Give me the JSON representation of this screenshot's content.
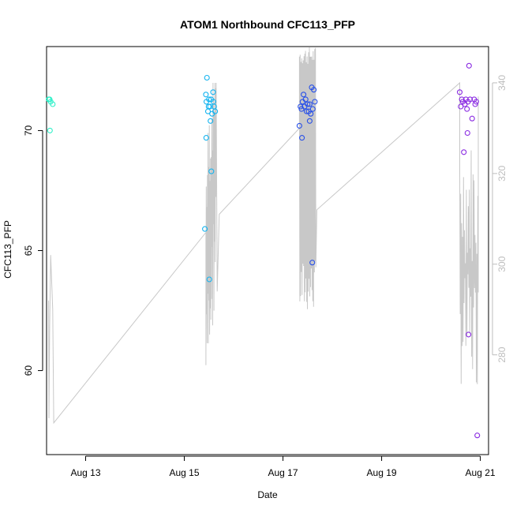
{
  "chart_data": {
    "type": "scatter",
    "title": "ATOM1 Northbound CFC113_PFP",
    "xlabel": "Date",
    "ylabel": "CFC113_PFP",
    "x_axis": {
      "type": "date",
      "ticks": [
        "Aug 13",
        "Aug 15",
        "Aug 17",
        "Aug 19",
        "Aug 21"
      ],
      "range": [
        "2016-08-12 05:00",
        "2016-08-21 04:00"
      ]
    },
    "y_axis_left": {
      "ticks": [
        60,
        65,
        70
      ],
      "range": [
        56.5,
        73.5
      ]
    },
    "y_axis_right": {
      "ticks": [
        280,
        300,
        320,
        340
      ],
      "range": [
        258,
        348
      ],
      "color": "#bdbdbd",
      "series": "altitude trace (gray line)"
    },
    "colors": {
      "group1": "#2ef0c8",
      "group2": "#14b4f0",
      "group3": "#2850e8",
      "group4": "#8a2be2",
      "line": "#c8c8c8"
    },
    "series": [
      {
        "color_key": "group1",
        "points": [
          [
            "2016-08-12 06:00",
            71.3
          ],
          [
            "2016-08-12 06:30",
            71.3
          ],
          [
            "2016-08-12 07:00",
            71.2
          ],
          [
            "2016-08-12 08:00",
            71.1
          ],
          [
            "2016-08-12 06:40",
            70.0
          ]
        ]
      },
      {
        "color_key": "group2",
        "points": [
          [
            "2016-08-15 11:00",
            72.2
          ],
          [
            "2016-08-15 10:30",
            71.5
          ],
          [
            "2016-08-15 14:00",
            71.6
          ],
          [
            "2016-08-15 10:45",
            71.2
          ],
          [
            "2016-08-15 12:00",
            71.3
          ],
          [
            "2016-08-15 13:00",
            71.3
          ],
          [
            "2016-08-15 12:30",
            71.0
          ],
          [
            "2016-08-15 14:30",
            71.0
          ],
          [
            "2016-08-15 11:30",
            70.8
          ],
          [
            "2016-08-15 15:00",
            70.8
          ],
          [
            "2016-08-15 13:30",
            70.7
          ],
          [
            "2016-08-15 12:45",
            70.4
          ],
          [
            "2016-08-15 10:40",
            69.7
          ],
          [
            "2016-08-15 13:10",
            68.3
          ],
          [
            "2016-08-15 10:00",
            65.9
          ],
          [
            "2016-08-15 12:10",
            63.8
          ],
          [
            "2016-08-15 14:10",
            71.2
          ],
          [
            "2016-08-15 11:50",
            71.0
          ]
        ]
      },
      {
        "color_key": "group3",
        "points": [
          [
            "2016-08-17 10:00",
            71.5
          ],
          [
            "2016-08-17 14:00",
            71.8
          ],
          [
            "2016-08-17 15:00",
            71.7
          ],
          [
            "2016-08-17 09:30",
            71.2
          ],
          [
            "2016-08-17 11:00",
            71.3
          ],
          [
            "2016-08-17 12:00",
            71.1
          ],
          [
            "2016-08-17 13:00",
            71.1
          ],
          [
            "2016-08-17 08:30",
            71.0
          ],
          [
            "2016-08-17 09:00",
            70.9
          ],
          [
            "2016-08-17 10:30",
            71.0
          ],
          [
            "2016-08-17 11:30",
            70.8
          ],
          [
            "2016-08-17 12:30",
            70.8
          ],
          [
            "2016-08-17 14:30",
            70.9
          ],
          [
            "2016-08-17 13:30",
            70.7
          ],
          [
            "2016-08-17 13:00",
            70.4
          ],
          [
            "2016-08-17 08:00",
            70.2
          ],
          [
            "2016-08-17 09:15",
            69.7
          ],
          [
            "2016-08-17 14:15",
            64.5
          ],
          [
            "2016-08-17 15:30",
            71.2
          ]
        ]
      },
      {
        "color_key": "group4",
        "points": [
          [
            "2016-08-20 14:00",
            71.6
          ],
          [
            "2016-08-20 15:00",
            71.3
          ],
          [
            "2016-08-20 15:30",
            71.2
          ],
          [
            "2016-08-20 17:00",
            71.3
          ],
          [
            "2016-08-20 18:00",
            71.2
          ],
          [
            "2016-08-20 19:00",
            71.3
          ],
          [
            "2016-08-20 21:00",
            71.3
          ],
          [
            "2016-08-20 22:00",
            71.2
          ],
          [
            "2016-08-20 16:30",
            71.1
          ],
          [
            "2016-08-20 14:30",
            71.0
          ],
          [
            "2016-08-20 17:30",
            70.9
          ],
          [
            "2016-08-20 20:00",
            70.5
          ],
          [
            "2016-08-20 18:30",
            72.7
          ],
          [
            "2016-08-20 17:45",
            69.9
          ],
          [
            "2016-08-20 16:00",
            69.1
          ],
          [
            "2016-08-20 18:15",
            61.5
          ],
          [
            "2016-08-20 22:30",
            57.3
          ],
          [
            "2016-08-20 21:30",
            71.1
          ]
        ]
      }
    ]
  }
}
